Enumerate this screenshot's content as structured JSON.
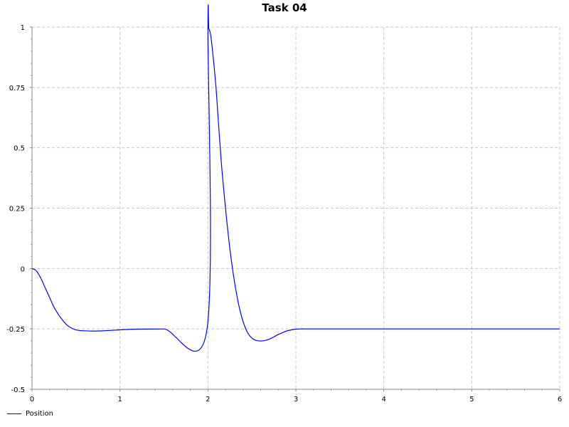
{
  "chart_data": {
    "type": "line",
    "title": "Task 04",
    "xlabel": "",
    "ylabel": "",
    "xlim": [
      0,
      6
    ],
    "ylim": [
      -0.5,
      1
    ],
    "xticks": [
      "0",
      "1",
      "2",
      "3",
      "4",
      "5",
      "6"
    ],
    "yticks": [
      "-0.5",
      "-0.25",
      "0",
      "0.25",
      "0.5",
      "0.75",
      "1"
    ],
    "grid": true,
    "legend_position": "bottom-left",
    "series": [
      {
        "name": "Position",
        "color": "#0000ff",
        "x": [
          0,
          0.05,
          0.1,
          0.15,
          0.2,
          0.25,
          0.3,
          0.35,
          0.4,
          0.45,
          0.5,
          0.55,
          0.6,
          0.7,
          0.8,
          0.9,
          1.0,
          1.1,
          1.2,
          1.5,
          1.99,
          2.0,
          2.01,
          2.03,
          2.05,
          2.08,
          2.1,
          2.15,
          2.2,
          2.25,
          2.3,
          2.35,
          2.4,
          2.45,
          2.5,
          2.55,
          2.6,
          2.65,
          2.7,
          2.75,
          2.8,
          2.85,
          2.9,
          2.95,
          3.0,
          3.05,
          3.1,
          3.15,
          3.2,
          3.25,
          3.5,
          4.0,
          5.0,
          6.0
        ],
        "y": [
          0,
          -0.01,
          -0.04,
          -0.08,
          -0.12,
          -0.16,
          -0.19,
          -0.215,
          -0.235,
          -0.247,
          -0.254,
          -0.257,
          -0.258,
          -0.259,
          -0.258,
          -0.256,
          -0.254,
          -0.252,
          -0.251,
          -0.25,
          -0.25,
          1.0,
          0.995,
          0.97,
          0.91,
          0.8,
          0.71,
          0.45,
          0.25,
          0.08,
          -0.05,
          -0.15,
          -0.22,
          -0.265,
          -0.288,
          -0.298,
          -0.3,
          -0.298,
          -0.292,
          -0.283,
          -0.273,
          -0.265,
          -0.258,
          -0.254,
          -0.251,
          -0.25,
          -0.25,
          -0.25,
          -0.25,
          -0.25,
          -0.25,
          -0.25,
          -0.25,
          -0.25
        ]
      }
    ]
  }
}
